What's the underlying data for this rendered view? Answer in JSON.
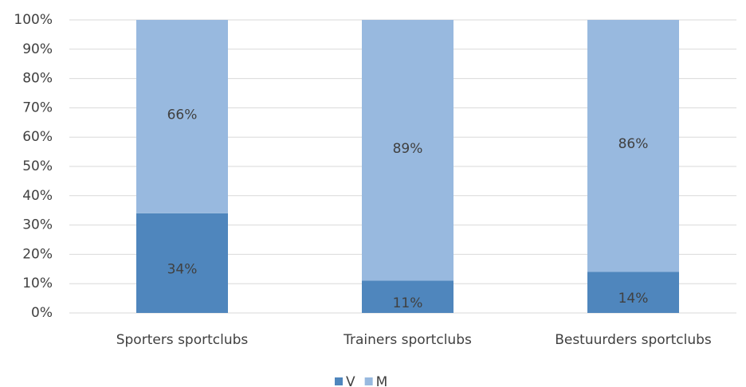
{
  "chart_data": {
    "type": "stacked_bar",
    "categories": [
      "Sporters sportclubs",
      "Trainers sportclubs",
      "Bestuurders sportclubs"
    ],
    "series": [
      {
        "name": "V",
        "color": "#4f86bd",
        "values": [
          34,
          11,
          14
        ],
        "value_labels": [
          "34%",
          "11%",
          "14%"
        ]
      },
      {
        "name": "M",
        "color": "#98b9df",
        "values": [
          66,
          89,
          86
        ],
        "value_labels": [
          "66%",
          "89%",
          "86%"
        ]
      }
    ],
    "ylim": [
      0,
      100
    ],
    "yticks": [
      {
        "value": 0,
        "label": "0%"
      },
      {
        "value": 10,
        "label": "10%"
      },
      {
        "value": 20,
        "label": "20%"
      },
      {
        "value": 30,
        "label": "30%"
      },
      {
        "value": 40,
        "label": "40%"
      },
      {
        "value": 50,
        "label": "50%"
      },
      {
        "value": 60,
        "label": "60%"
      },
      {
        "value": 70,
        "label": "70%"
      },
      {
        "value": 80,
        "label": "80%"
      },
      {
        "value": 90,
        "label": "90%"
      },
      {
        "value": 100,
        "label": "100%"
      }
    ],
    "grid": true,
    "legend": "bottom"
  }
}
